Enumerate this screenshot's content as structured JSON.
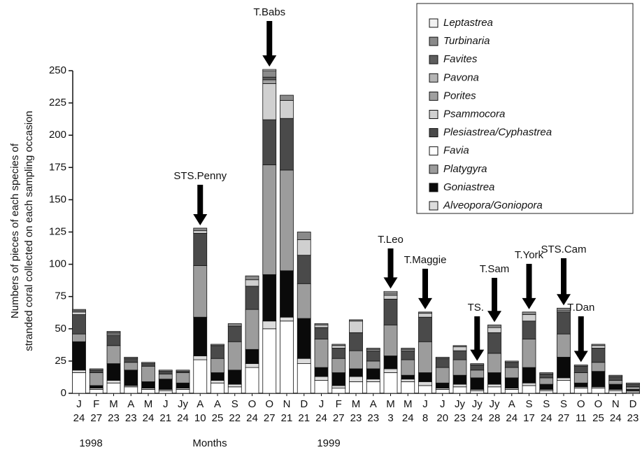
{
  "chart_data": {
    "type": "bar",
    "stacked": true,
    "ylabel": [
      "Numbers of pieces of each species of",
      "stranded coral collected on each sampling occasion"
    ],
    "xlabel": "Months",
    "year_labels": [
      "1998",
      "1999"
    ],
    "categories": [
      "J",
      "F",
      "M",
      "A",
      "M",
      "J",
      "Jy",
      "A",
      "A",
      "S",
      "O",
      "O",
      "N",
      "D",
      "J",
      "F",
      "M",
      "A",
      "M",
      "M",
      "J",
      "J",
      "Jy",
      "Jy",
      "Jy",
      "A",
      "S",
      "S",
      "S",
      "O",
      "O",
      "N",
      "D"
    ],
    "category_dates": [
      "24",
      "27",
      "23",
      "23",
      "24",
      "21",
      "24",
      "10",
      "25",
      "22",
      "24",
      "27",
      "21",
      "21",
      "24",
      "27",
      "23",
      "23",
      "3",
      "24",
      "8",
      "20",
      "23",
      "24",
      "28",
      "24",
      "17",
      "24",
      "27",
      "11",
      "25",
      "24",
      "23"
    ],
    "ylim": [
      0,
      250
    ],
    "yticks": [
      0,
      25,
      50,
      75,
      100,
      125,
      150,
      175,
      200,
      225,
      250
    ],
    "annotations": [
      "STS.Penny",
      "T.Babs",
      "T.Leo",
      "T.Maggie",
      "TS.",
      "T.Sam",
      "T.York",
      "STS.Cam",
      "T.Dan"
    ],
    "series": [
      {
        "name": "Leptastrea",
        "color": "#f2f2f2",
        "values": [
          0,
          0,
          0,
          0,
          0,
          0,
          0,
          0,
          0,
          0,
          0,
          1,
          0,
          0,
          0,
          0,
          0,
          0,
          1,
          0,
          0,
          0,
          0,
          0,
          0,
          0,
          0,
          0,
          0,
          0,
          0,
          0,
          0
        ]
      },
      {
        "name": "Turbinaria",
        "color": "#8a8a8a",
        "values": [
          1,
          1,
          1,
          1,
          1,
          1,
          1,
          2,
          1,
          2,
          3,
          5,
          4,
          6,
          1,
          1,
          1,
          1,
          2,
          1,
          1,
          1,
          1,
          1,
          2,
          1,
          2,
          1,
          2,
          1,
          1,
          1,
          1
        ]
      },
      {
        "name": "Favites",
        "color": "#5e5e5e",
        "values": [
          0,
          0,
          0,
          0,
          0,
          0,
          0,
          0,
          0,
          0,
          0,
          2,
          0,
          0,
          0,
          0,
          0,
          0,
          0,
          0,
          0,
          0,
          0,
          0,
          0,
          0,
          0,
          0,
          0,
          0,
          0,
          0,
          0
        ]
      },
      {
        "name": "Pavona",
        "color": "#b5b5b5",
        "values": [
          0,
          0,
          0,
          0,
          0,
          0,
          0,
          0,
          0,
          0,
          0,
          0,
          0,
          0,
          0,
          0,
          0,
          0,
          0,
          0,
          0,
          0,
          0,
          0,
          0,
          0,
          0,
          0,
          0,
          0,
          0,
          0,
          0
        ]
      },
      {
        "name": "Porites",
        "color": "#a0a0a0",
        "values": [
          1,
          0,
          1,
          0,
          0,
          0,
          0,
          0,
          0,
          0,
          0,
          3,
          0,
          0,
          0,
          0,
          0,
          0,
          0,
          0,
          0,
          0,
          0,
          0,
          0,
          0,
          0,
          0,
          0,
          0,
          0,
          0,
          0
        ]
      },
      {
        "name": "Psammocora",
        "color": "#d0d0d0",
        "values": [
          2,
          0,
          1,
          0,
          0,
          0,
          0,
          2,
          0,
          0,
          5,
          28,
          14,
          12,
          2,
          2,
          9,
          1,
          3,
          1,
          3,
          0,
          3,
          0,
          4,
          0,
          5,
          0,
          1,
          0,
          2,
          0,
          0
        ]
      },
      {
        "name": "Plesiastrea/Cyphastrea",
        "color": "#4a4a4a",
        "values": [
          15,
          2,
          8,
          3,
          2,
          2,
          1,
          25,
          10,
          12,
          18,
          35,
          40,
          22,
          9,
          8,
          14,
          8,
          20,
          7,
          19,
          7,
          7,
          4,
          16,
          4,
          14,
          3,
          17,
          5,
          11,
          3,
          2
        ]
      },
      {
        "name": "Favia",
        "color": "#ffffff",
        "values": [
          16,
          3,
          8,
          5,
          3,
          2,
          3,
          26,
          8,
          5,
          20,
          50,
          56,
          23,
          10,
          4,
          9,
          9,
          16,
          9,
          6,
          3,
          5,
          2,
          5,
          3,
          6,
          2,
          10,
          4,
          4,
          2,
          1
        ]
      },
      {
        "name": "Platygyra",
        "color": "#9c9c9c",
        "values": [
          6,
          10,
          14,
          6,
          12,
          4,
          8,
          40,
          11,
          22,
          31,
          85,
          78,
          27,
          22,
          11,
          14,
          6,
          24,
          12,
          24,
          12,
          12,
          6,
          15,
          8,
          22,
          5,
          18,
          8,
          7,
          3,
          2
        ]
      },
      {
        "name": "Goniastrea",
        "color": "#0a0a0a",
        "values": [
          22,
          2,
          13,
          12,
          5,
          8,
          4,
          30,
          6,
          11,
          11,
          36,
          36,
          31,
          7,
          10,
          6,
          8,
          10,
          3,
          7,
          4,
          7,
          9,
          9,
          8,
          12,
          4,
          16,
          3,
          12,
          4,
          1
        ]
      },
      {
        "name": "Alveopora/Goniopora",
        "color": "#dcdcdc",
        "values": [
          2,
          1,
          2,
          1,
          1,
          1,
          1,
          3,
          2,
          2,
          3,
          6,
          3,
          4,
          3,
          2,
          4,
          2,
          3,
          2,
          3,
          1,
          2,
          1,
          2,
          1,
          2,
          1,
          2,
          1,
          1,
          1,
          1
        ]
      }
    ]
  }
}
